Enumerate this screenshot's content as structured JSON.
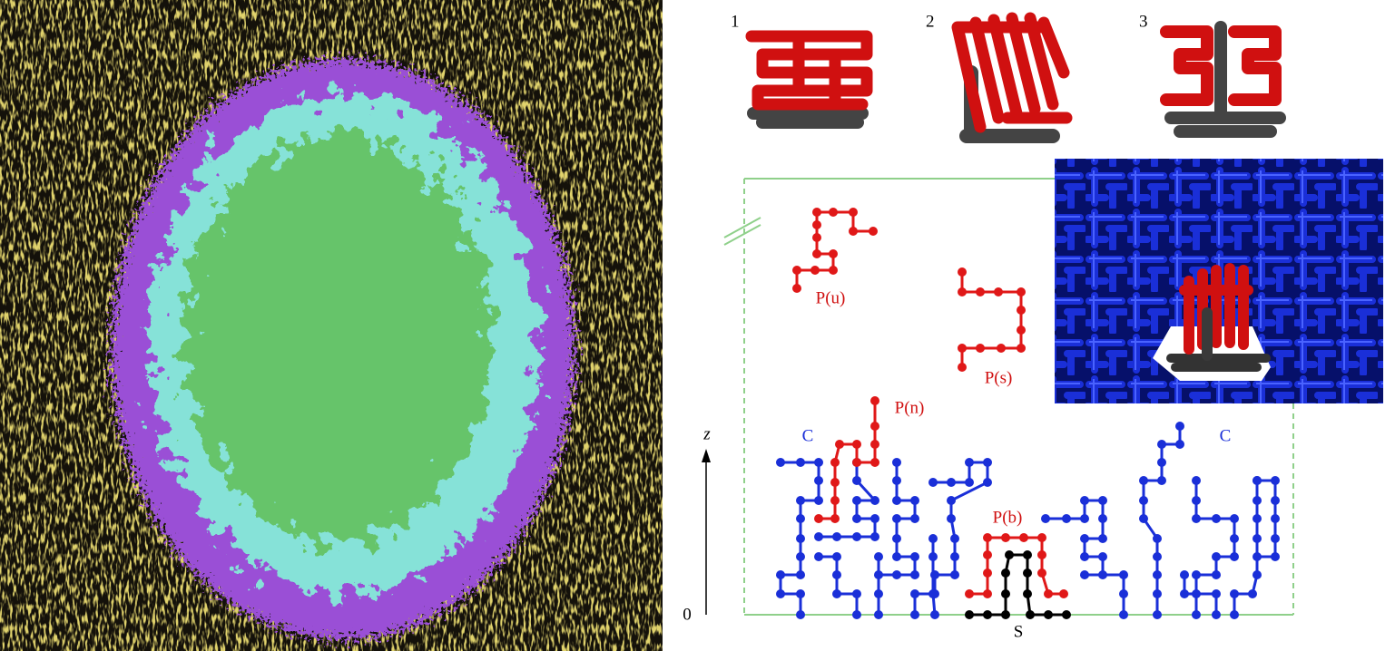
{
  "figure": {
    "structures": [
      "1",
      "2",
      "3"
    ],
    "axis": {
      "label": "z",
      "origin": "0"
    },
    "labels": {
      "unfolded": "P(u)",
      "solution": "P(s)",
      "near": "P(n)",
      "bound": "P(b)",
      "crowder_left": "C",
      "crowder_right": "C",
      "surface": "S"
    }
  }
}
